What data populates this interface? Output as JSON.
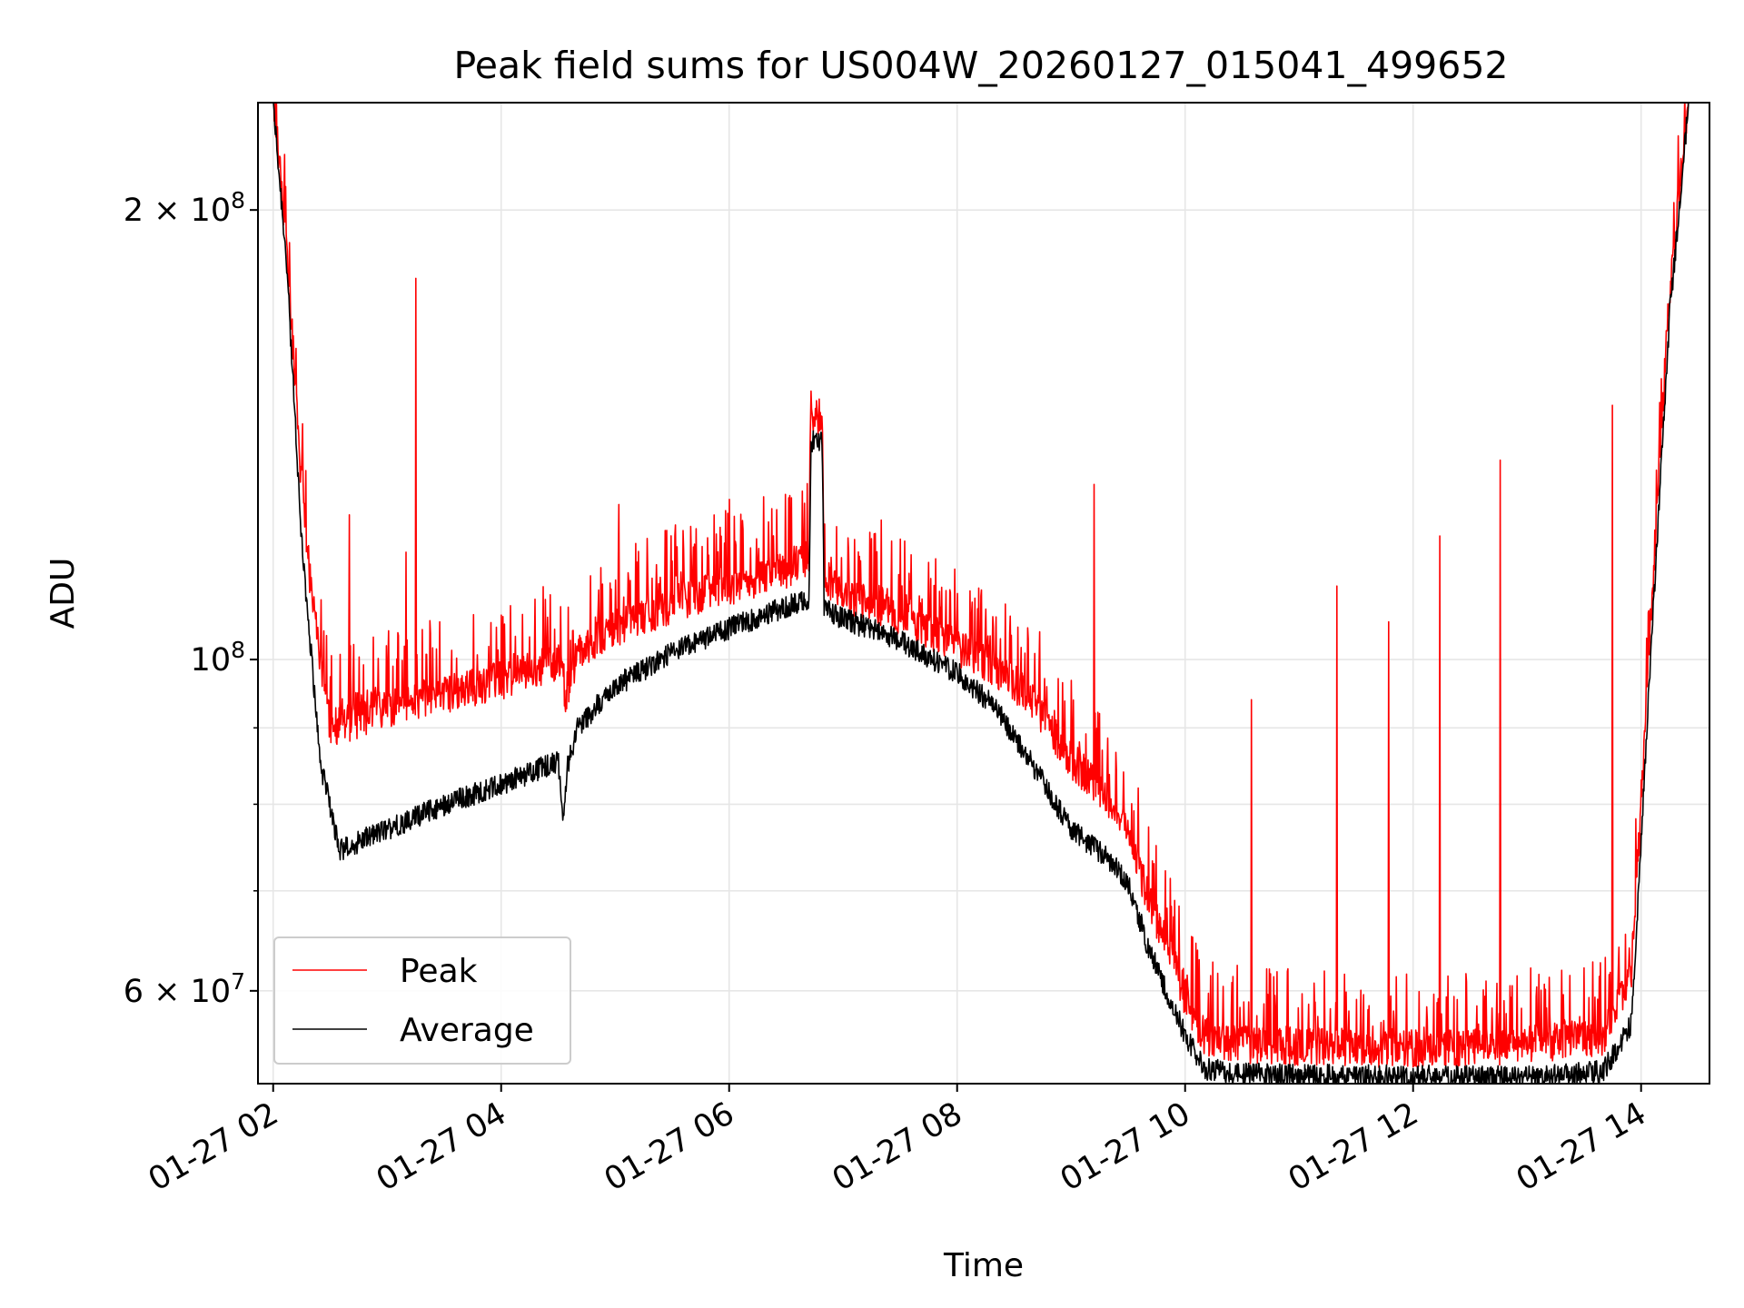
{
  "chart_data": {
    "type": "line",
    "title": "Peak field sums for US004W_20260127_015041_499652",
    "xlabel": "Time",
    "ylabel": "ADU",
    "y_scale": "log",
    "x_range": [
      "2026-01-27 01:52",
      "2026-01-27 14:36"
    ],
    "ylim": [
      52000000,
      236000000
    ],
    "grid": true,
    "legend_placement": "lower-left",
    "x_tick_labels": [
      "01-27 02",
      "01-27 04",
      "01-27 06",
      "01-27 08",
      "01-27 10",
      "01-27 12",
      "01-27 14"
    ],
    "x_tick_values": [
      "2026-01-27 02:00",
      "2026-01-27 04:00",
      "2026-01-27 06:00",
      "2026-01-27 08:00",
      "2026-01-27 10:00",
      "2026-01-27 12:00",
      "2026-01-27 14:00"
    ],
    "y_major_ticks": [
      {
        "value": 60000000,
        "mantissa": "6",
        "exponent": "7"
      },
      {
        "value": 100000000,
        "mantissa": "",
        "exponent": "8"
      },
      {
        "value": 200000000,
        "mantissa": "2",
        "exponent": "8"
      }
    ],
    "y_minor_gridlines": [
      70000000,
      80000000,
      90000000
    ],
    "series": [
      {
        "name": "Peak",
        "color": "#ff0000",
        "baseline": {
          "x": [
            "2026-01-27 02:00",
            "2026-01-27 02:07",
            "2026-01-27 02:15",
            "2026-01-27 02:20",
            "2026-01-27 02:30",
            "2026-01-27 03:00",
            "2026-01-27 03:30",
            "2026-01-27 04:00",
            "2026-01-27 04:30",
            "2026-01-27 04:34",
            "2026-01-27 04:40",
            "2026-01-27 05:00",
            "2026-01-27 05:30",
            "2026-01-27 06:00",
            "2026-01-27 06:30",
            "2026-01-27 06:42",
            "2026-01-27 06:43",
            "2026-01-27 06:49",
            "2026-01-27 06:50",
            "2026-01-27 07:00",
            "2026-01-27 07:30",
            "2026-01-27 08:00",
            "2026-01-27 08:20",
            "2026-01-27 08:40",
            "2026-01-27 09:00",
            "2026-01-27 09:20",
            "2026-01-27 09:30",
            "2026-01-27 09:40",
            "2026-01-27 10:00",
            "2026-01-27 10:10",
            "2026-01-27 10:30",
            "2026-01-27 11:00",
            "2026-01-27 12:00",
            "2026-01-27 13:00",
            "2026-01-27 13:40",
            "2026-01-27 13:55",
            "2026-01-27 14:05",
            "2026-01-27 14:15",
            "2026-01-27 14:25"
          ],
          "y": [
            236000000,
            190000000,
            130000000,
            110000000,
            89000000,
            92000000,
            94000000,
            96000000,
            99000000,
            94000000,
            100000000,
            104000000,
            108000000,
            111000000,
            114000000,
            116000000,
            145000000,
            144000000,
            113000000,
            110000000,
            106000000,
            101000000,
            98000000,
            93000000,
            85000000,
            80000000,
            76000000,
            69000000,
            59000000,
            55500000,
            54800000,
            54600000,
            54400000,
            54700000,
            55500000,
            61000000,
            105000000,
            175000000,
            236000000
          ]
        },
        "spikes": [
          {
            "x": "2026-01-27 03:15",
            "y": 180000000
          },
          {
            "x": "2026-01-27 02:40",
            "y": 125000000
          },
          {
            "x": "2026-01-27 03:10",
            "y": 118000000
          },
          {
            "x": "2026-01-27 05:02",
            "y": 127000000
          },
          {
            "x": "2026-01-27 06:00",
            "y": 128000000
          },
          {
            "x": "2026-01-27 06:25",
            "y": 126000000
          },
          {
            "x": "2026-01-27 07:20",
            "y": 124000000
          },
          {
            "x": "2026-01-27 09:12",
            "y": 131000000
          },
          {
            "x": "2026-01-27 09:15",
            "y": 92000000
          },
          {
            "x": "2026-01-27 10:35",
            "y": 94000000
          },
          {
            "x": "2026-01-27 11:20",
            "y": 112000000
          },
          {
            "x": "2026-01-27 11:47",
            "y": 106000000
          },
          {
            "x": "2026-01-27 12:14",
            "y": 121000000
          },
          {
            "x": "2026-01-27 12:46",
            "y": 136000000
          },
          {
            "x": "2026-01-27 13:45",
            "y": 148000000
          }
        ]
      },
      {
        "name": "Average",
        "color": "#000000",
        "baseline": {
          "x": [
            "2026-01-27 02:00",
            "2026-01-27 02:07",
            "2026-01-27 02:15",
            "2026-01-27 02:25",
            "2026-01-27 02:35",
            "2026-01-27 03:00",
            "2026-01-27 03:30",
            "2026-01-27 04:00",
            "2026-01-27 04:30",
            "2026-01-27 04:33",
            "2026-01-27 04:35",
            "2026-01-27 04:40",
            "2026-01-27 05:00",
            "2026-01-27 05:30",
            "2026-01-27 06:00",
            "2026-01-27 06:30",
            "2026-01-27 06:42",
            "2026-01-27 06:43",
            "2026-01-27 06:49",
            "2026-01-27 06:50",
            "2026-01-27 07:00",
            "2026-01-27 07:30",
            "2026-01-27 08:00",
            "2026-01-27 08:20",
            "2026-01-27 08:40",
            "2026-01-27 09:00",
            "2026-01-27 09:20",
            "2026-01-27 09:30",
            "2026-01-27 09:40",
            "2026-01-27 10:00",
            "2026-01-27 10:10",
            "2026-01-27 10:30",
            "2026-01-27 11:00",
            "2026-01-27 12:00",
            "2026-01-27 13:00",
            "2026-01-27 13:40",
            "2026-01-27 13:55",
            "2026-01-27 14:05",
            "2026-01-27 14:15",
            "2026-01-27 14:25"
          ],
          "y": [
            236000000,
            185000000,
            120000000,
            85000000,
            74500000,
            77000000,
            80000000,
            82500000,
            85500000,
            78000000,
            85000000,
            90000000,
            96000000,
            101000000,
            105000000,
            108500000,
            109500000,
            140000000,
            140000000,
            108000000,
            106500000,
            103000000,
            98000000,
            93000000,
            85000000,
            77000000,
            73500000,
            71000000,
            64500000,
            56000000,
            53200000,
            52800000,
            52700000,
            52600000,
            52500000,
            53000000,
            57000000,
            100000000,
            170000000,
            236000000
          ]
        }
      }
    ]
  }
}
